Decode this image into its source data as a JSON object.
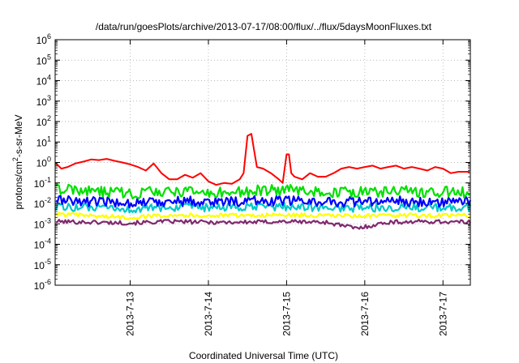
{
  "chart_data": {
    "type": "line",
    "title": "/data/run/goesPlots/archive/2013-07-17/08:00/flux/../flux/5daysMoonFluxes.txt",
    "xlabel": "Coordinated Universal Time (UTC)",
    "ylabel": {
      "prefix": "protons/cm",
      "sup": "2",
      "suffix": "-s-sr-MeV"
    },
    "y_scale": "log",
    "ylim_exp": [
      -6,
      6
    ],
    "y_tick_labels": [
      {
        "exp": -6,
        "base": "10",
        "sup": "-6"
      },
      {
        "exp": -5,
        "base": "10",
        "sup": "-5"
      },
      {
        "exp": -4,
        "base": "10",
        "sup": "-4"
      },
      {
        "exp": -3,
        "base": "10",
        "sup": "-3"
      },
      {
        "exp": -2,
        "base": "10",
        "sup": "-2"
      },
      {
        "exp": -1,
        "base": "10",
        "sup": "-1"
      },
      {
        "exp": 0,
        "base": "10",
        "sup": "0"
      },
      {
        "exp": 1,
        "base": "10",
        "sup": "1"
      },
      {
        "exp": 2,
        "base": "10",
        "sup": "2"
      },
      {
        "exp": 3,
        "base": "10",
        "sup": "3"
      },
      {
        "exp": 4,
        "base": "10",
        "sup": "4"
      },
      {
        "exp": 5,
        "base": "10",
        "sup": "5"
      },
      {
        "exp": 6,
        "base": "10",
        "sup": "6"
      }
    ],
    "xlim_days": [
      12.04,
      17.35
    ],
    "x_ticks": [
      {
        "day": 13,
        "label": "2013-7-13"
      },
      {
        "day": 14,
        "label": "2013-7-14"
      },
      {
        "day": 15,
        "label": "2013-7-15"
      },
      {
        "day": 16,
        "label": "2013-7-16"
      },
      {
        "day": 17,
        "label": "2013-7-17"
      }
    ],
    "grid": true,
    "legend": "none",
    "series": [
      {
        "color": "#7f2a6e",
        "base": 0.0012,
        "points": [
          [
            12.05,
            0.0013
          ],
          [
            12.5,
            0.0012
          ],
          [
            13.0,
            0.0011
          ],
          [
            13.5,
            0.0013
          ],
          [
            14.0,
            0.0012
          ],
          [
            14.5,
            0.0012
          ],
          [
            15.0,
            0.0013
          ],
          [
            15.5,
            0.0012
          ],
          [
            15.9,
            0.0006
          ],
          [
            16.3,
            0.0012
          ],
          [
            16.8,
            0.0013
          ],
          [
            17.34,
            0.0012
          ]
        ]
      },
      {
        "color": "#ffff00",
        "base": 0.0025,
        "points": [
          [
            12.05,
            0.003
          ],
          [
            12.5,
            0.0025
          ],
          [
            13.0,
            0.002
          ],
          [
            13.5,
            0.0028
          ],
          [
            14.0,
            0.0025
          ],
          [
            14.5,
            0.0026
          ],
          [
            15.0,
            0.0027
          ],
          [
            15.5,
            0.0025
          ],
          [
            16.0,
            0.0024
          ],
          [
            16.5,
            0.0026
          ],
          [
            17.0,
            0.0025
          ],
          [
            17.34,
            0.0026
          ]
        ]
      },
      {
        "color": "#00c8c8",
        "base": 0.006,
        "points": [
          [
            12.05,
            0.007
          ],
          [
            12.5,
            0.006
          ],
          [
            13.0,
            0.005
          ],
          [
            13.5,
            0.0065
          ],
          [
            14.0,
            0.006
          ],
          [
            14.5,
            0.0065
          ],
          [
            15.0,
            0.007
          ],
          [
            15.5,
            0.006
          ],
          [
            16.0,
            0.006
          ],
          [
            16.5,
            0.0065
          ],
          [
            17.0,
            0.006
          ],
          [
            17.34,
            0.0065
          ]
        ]
      },
      {
        "color": "#0000ff",
        "base": 0.012,
        "points": [
          [
            12.05,
            0.015
          ],
          [
            12.5,
            0.012
          ],
          [
            13.0,
            0.011
          ],
          [
            13.5,
            0.013
          ],
          [
            14.0,
            0.012
          ],
          [
            14.5,
            0.013
          ],
          [
            15.0,
            0.014
          ],
          [
            15.5,
            0.012
          ],
          [
            16.0,
            0.012
          ],
          [
            16.5,
            0.013
          ],
          [
            17.0,
            0.012
          ],
          [
            17.34,
            0.013
          ]
        ]
      },
      {
        "color": "#00e000",
        "base": 0.035,
        "points": [
          [
            12.05,
            0.05
          ],
          [
            12.5,
            0.04
          ],
          [
            13.0,
            0.03
          ],
          [
            13.5,
            0.04
          ],
          [
            14.0,
            0.03
          ],
          [
            14.5,
            0.04
          ],
          [
            15.0,
            0.045
          ],
          [
            15.5,
            0.035
          ],
          [
            16.0,
            0.035
          ],
          [
            16.5,
            0.04
          ],
          [
            17.0,
            0.035
          ],
          [
            17.34,
            0.035
          ]
        ]
      },
      {
        "color": "#ff0000",
        "base": null,
        "points": [
          [
            12.05,
            0.9
          ],
          [
            12.12,
            0.5
          ],
          [
            12.2,
            0.6
          ],
          [
            12.3,
            0.9
          ],
          [
            12.4,
            1.1
          ],
          [
            12.5,
            1.4
          ],
          [
            12.6,
            1.3
          ],
          [
            12.7,
            1.5
          ],
          [
            12.8,
            1.2
          ],
          [
            12.9,
            1.0
          ],
          [
            13.0,
            0.8
          ],
          [
            13.1,
            0.6
          ],
          [
            13.2,
            0.4
          ],
          [
            13.3,
            0.9
          ],
          [
            13.4,
            0.3
          ],
          [
            13.5,
            0.15
          ],
          [
            13.6,
            0.15
          ],
          [
            13.7,
            0.25
          ],
          [
            13.8,
            0.18
          ],
          [
            13.9,
            0.3
          ],
          [
            14.0,
            0.12
          ],
          [
            14.1,
            0.08
          ],
          [
            14.2,
            0.1
          ],
          [
            14.3,
            0.09
          ],
          [
            14.4,
            0.15
          ],
          [
            14.45,
            0.3
          ],
          [
            14.5,
            20
          ],
          [
            14.55,
            25
          ],
          [
            14.58,
            5
          ],
          [
            14.62,
            0.6
          ],
          [
            14.7,
            0.5
          ],
          [
            14.8,
            0.3
          ],
          [
            14.9,
            0.15
          ],
          [
            14.95,
            0.1
          ],
          [
            15.0,
            2.5
          ],
          [
            15.03,
            2.5
          ],
          [
            15.06,
            0.3
          ],
          [
            15.1,
            0.2
          ],
          [
            15.2,
            0.15
          ],
          [
            15.3,
            0.3
          ],
          [
            15.4,
            0.2
          ],
          [
            15.5,
            0.2
          ],
          [
            15.6,
            0.3
          ],
          [
            15.7,
            0.5
          ],
          [
            15.8,
            0.6
          ],
          [
            15.9,
            0.5
          ],
          [
            16.0,
            0.6
          ],
          [
            16.1,
            0.7
          ],
          [
            16.2,
            0.5
          ],
          [
            16.3,
            0.6
          ],
          [
            16.4,
            0.7
          ],
          [
            16.5,
            0.5
          ],
          [
            16.6,
            0.6
          ],
          [
            16.7,
            0.5
          ],
          [
            16.8,
            0.4
          ],
          [
            16.9,
            0.6
          ],
          [
            17.0,
            0.5
          ],
          [
            17.1,
            0.3
          ],
          [
            17.2,
            0.35
          ],
          [
            17.34,
            0.35
          ]
        ]
      }
    ]
  }
}
